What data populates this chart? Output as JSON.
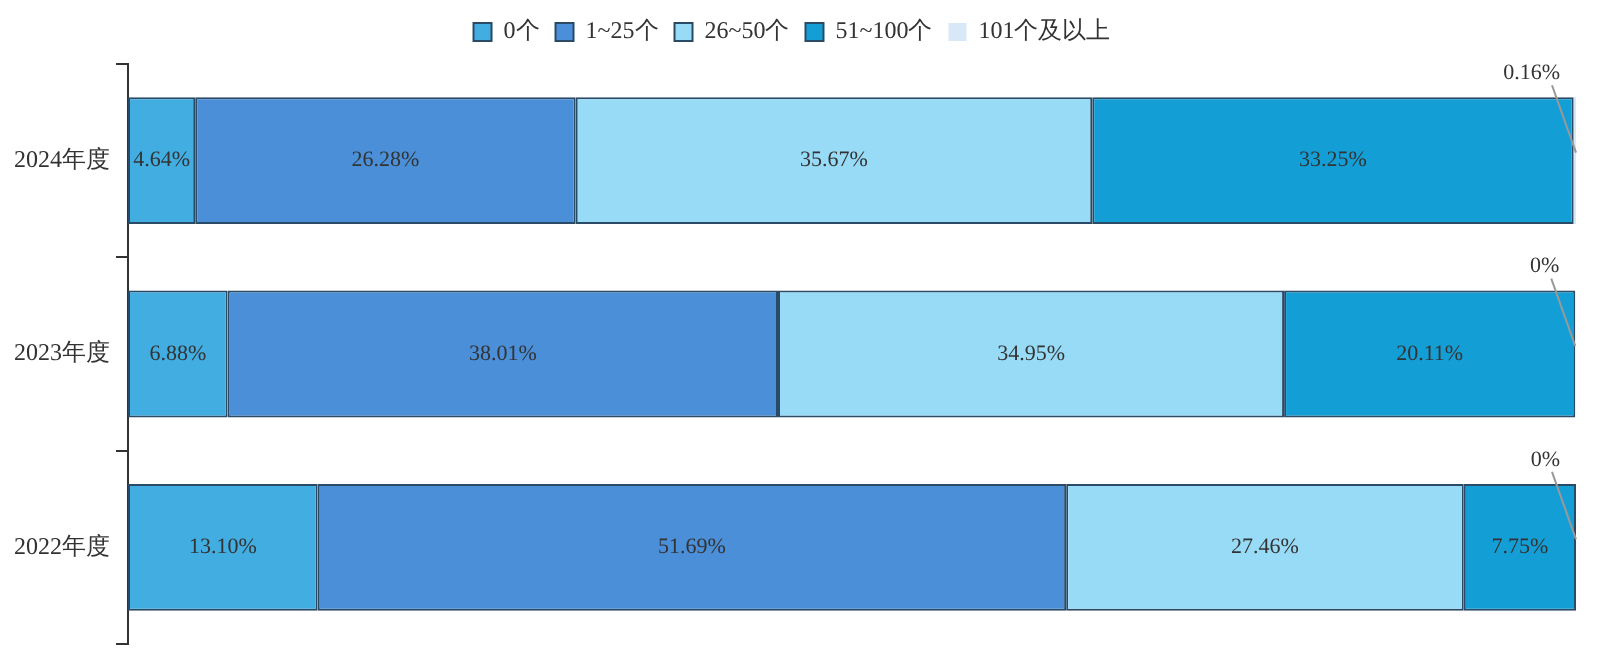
{
  "chart_data": {
    "type": "bar",
    "orientation": "horizontal",
    "stacked": true,
    "legend": "top",
    "categories": [
      "2024年度",
      "2023年度",
      "2022年度"
    ],
    "series": [
      {
        "name": "0个",
        "color": "#41ade0",
        "values": [
          4.64,
          6.88,
          13.1
        ],
        "value_labels": [
          "4.64%",
          "6.88%",
          "13.10%"
        ]
      },
      {
        "name": "1~25个",
        "color": "#4a8fd8",
        "values": [
          26.28,
          38.01,
          51.69
        ],
        "value_labels": [
          "26.28%",
          "38.01%",
          "51.69%"
        ]
      },
      {
        "name": "26~50个",
        "color": "#98dbf7",
        "values": [
          35.67,
          34.95,
          27.46
        ],
        "value_labels": [
          "35.67%",
          "34.95%",
          "27.46%"
        ]
      },
      {
        "name": "51~100个",
        "color": "#139fd6",
        "values": [
          33.25,
          20.11,
          7.75
        ],
        "value_labels": [
          "33.25%",
          "20.11%",
          "7.75%"
        ]
      },
      {
        "name": "101个及以上",
        "color": "#d8e8f6",
        "values": [
          0.16,
          0,
          0
        ],
        "value_labels": [
          "0.16%",
          "0%",
          "0%"
        ]
      }
    ]
  }
}
